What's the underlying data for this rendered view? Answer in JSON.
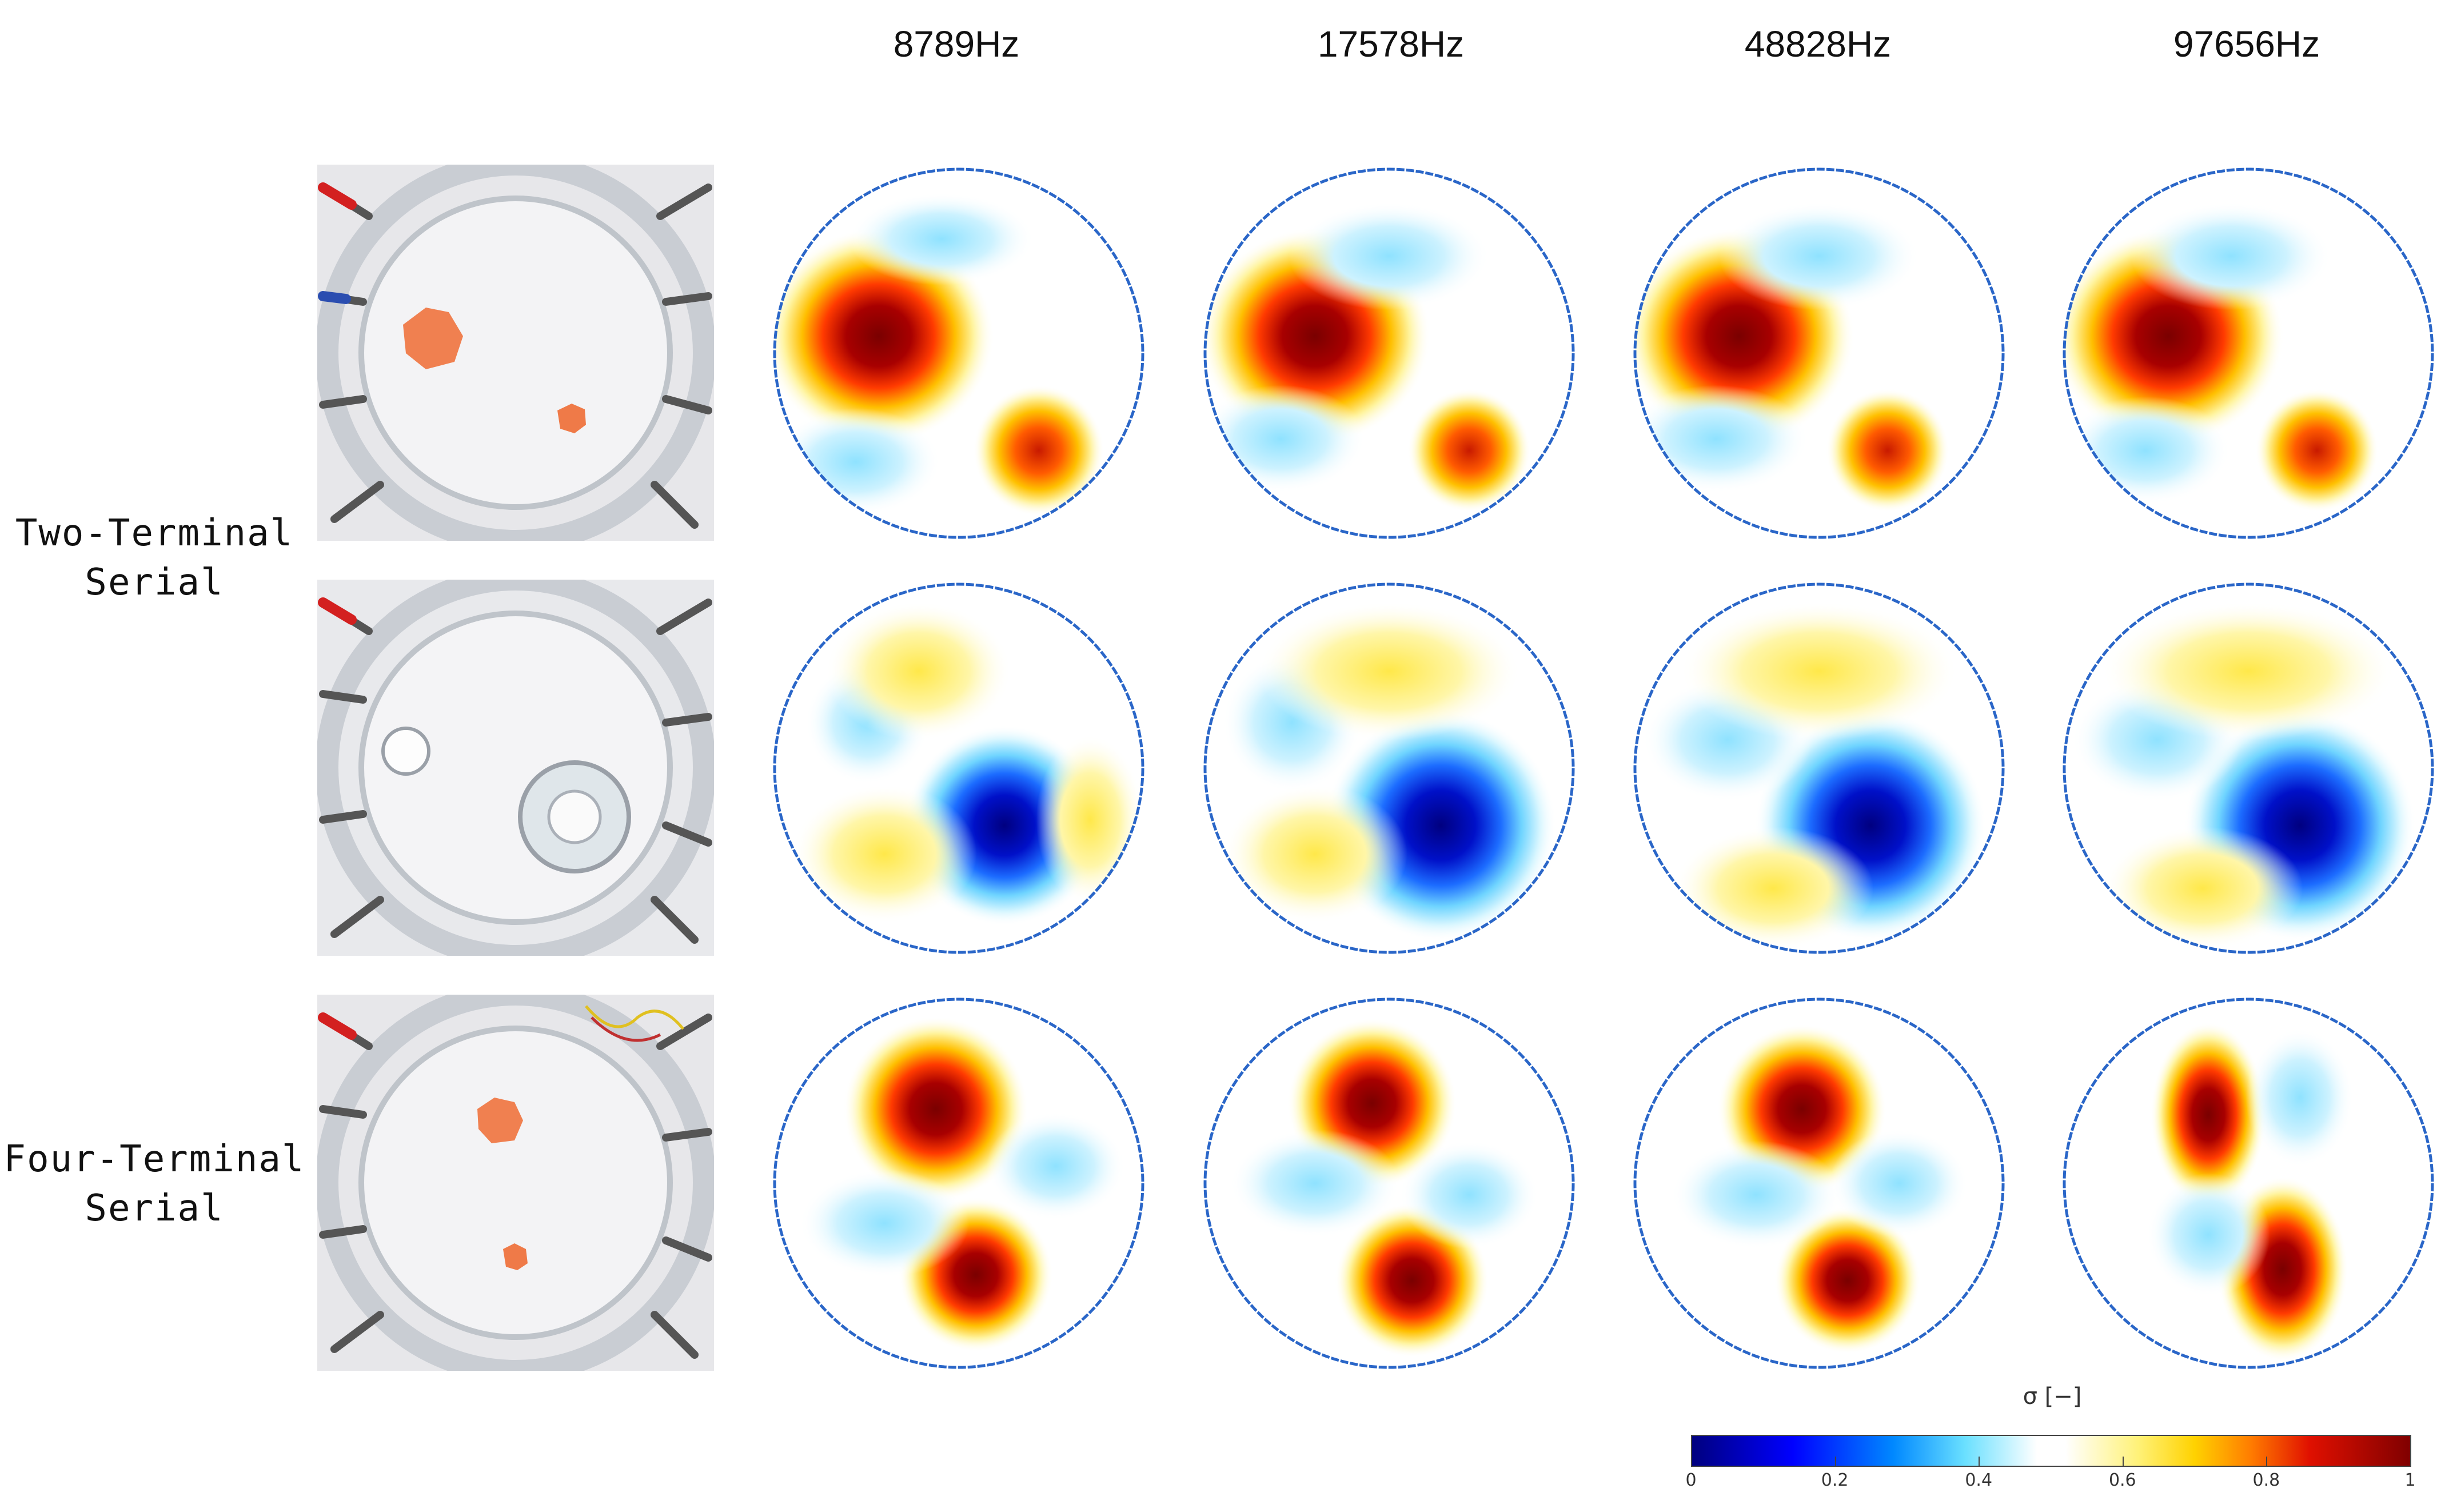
{
  "columns": [
    "8789Hz",
    "17578Hz",
    "48828Hz",
    "97656Hz"
  ],
  "rows": [
    {
      "label_line1": "Two-Terminal",
      "label_line2": "Serial"
    },
    {
      "label_line1": "Four-Terminal",
      "label_line2": "Serial"
    }
  ],
  "colorbar": {
    "title": "σ [−]",
    "ticks": [
      "0",
      "0.2",
      "0.4",
      "0.6",
      "0.8",
      "1"
    ],
    "colormap": "jet",
    "range": [
      0,
      1
    ]
  },
  "colors": {
    "outline": "#2a66c8",
    "background": "#ffffff"
  }
}
